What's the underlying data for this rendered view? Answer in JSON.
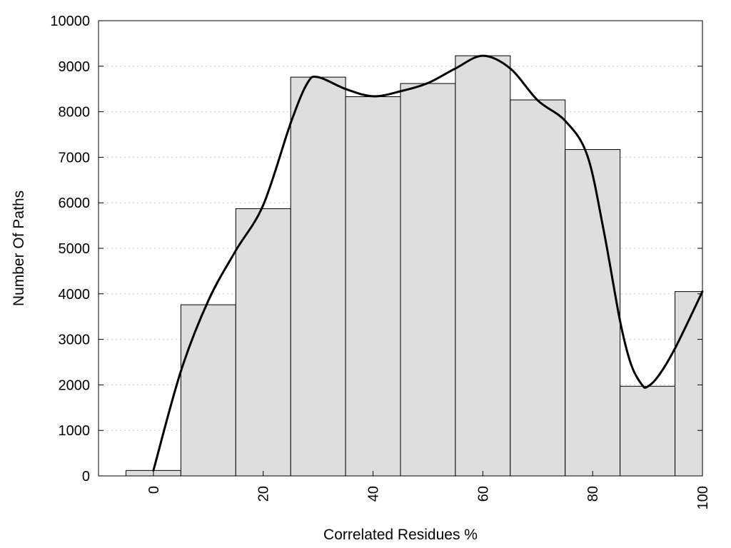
{
  "chart_data": {
    "type": "bar",
    "xlabel": "Correlated Residues %",
    "ylabel": "Number Of Paths",
    "xlim": [
      -10,
      100
    ],
    "ylim": [
      0,
      10000
    ],
    "x_ticks": [
      0,
      20,
      40,
      60,
      80,
      100
    ],
    "y_ticks": [
      0,
      1000,
      2000,
      3000,
      4000,
      5000,
      6000,
      7000,
      8000,
      9000,
      10000
    ],
    "grid": "horizontal dotted",
    "bin_width": 10,
    "bars": [
      {
        "x": 0,
        "value": 120
      },
      {
        "x": 10,
        "value": 3760
      },
      {
        "x": 20,
        "value": 5870
      },
      {
        "x": 30,
        "value": 8760
      },
      {
        "x": 40,
        "value": 8330
      },
      {
        "x": 50,
        "value": 8620
      },
      {
        "x": 60,
        "value": 9230
      },
      {
        "x": 70,
        "value": 8260
      },
      {
        "x": 80,
        "value": 7170
      },
      {
        "x": 90,
        "value": 1970
      },
      {
        "x": 100,
        "value": 4050
      }
    ],
    "series": [
      {
        "type": "line",
        "x": [
          0,
          5,
          10,
          15,
          20,
          25,
          28,
          30,
          35,
          40,
          45,
          50,
          55,
          60,
          65,
          70,
          75,
          79,
          82,
          85,
          87,
          89,
          90,
          92,
          95,
          100
        ],
        "values": [
          120,
          2300,
          3850,
          4950,
          5950,
          7750,
          8620,
          8760,
          8500,
          8340,
          8450,
          8630,
          8950,
          9230,
          8950,
          8250,
          7800,
          7050,
          5400,
          3400,
          2450,
          2000,
          1960,
          2200,
          2800,
          4050
        ]
      }
    ],
    "colors": {
      "bar_fill": "#dedede",
      "bar_edge": "#000000",
      "line": "#000000"
    }
  }
}
